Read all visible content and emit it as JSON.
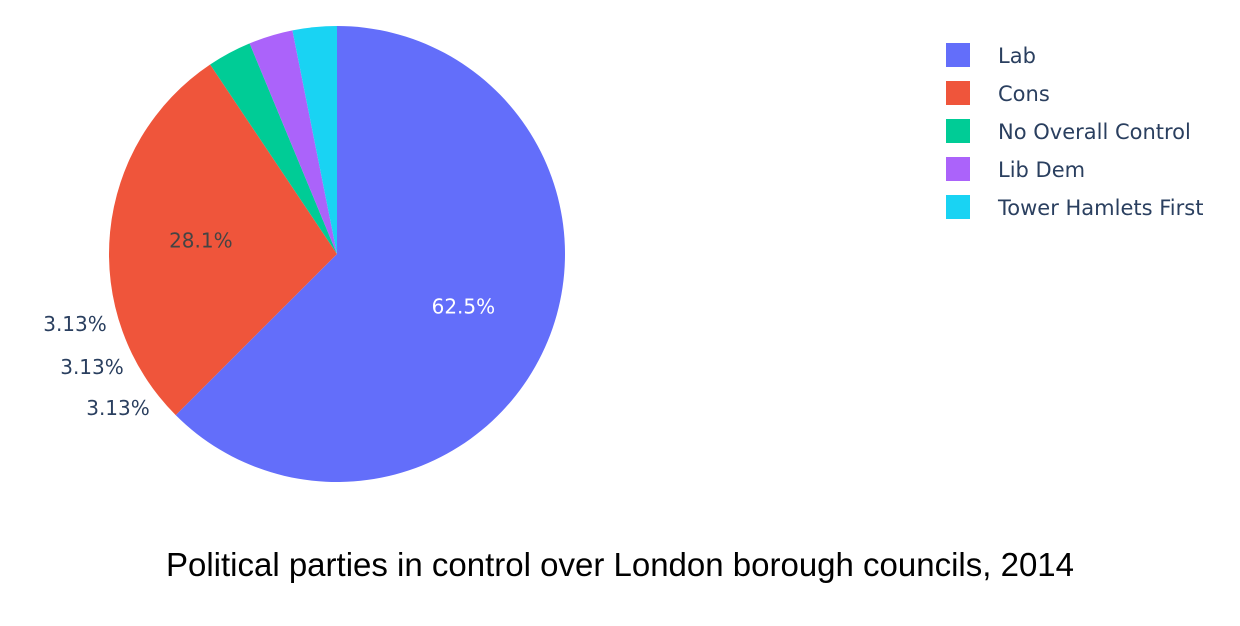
{
  "chart_data": {
    "type": "pie",
    "categories": [
      "Lab",
      "Cons",
      "No Overall Control",
      "Lib Dem",
      "Tower Hamlets First"
    ],
    "values": [
      62.5,
      28.1,
      3.13,
      3.13,
      3.13
    ],
    "labels": [
      "62.5%",
      "28.1%",
      "3.13%",
      "3.13%",
      "3.13%"
    ],
    "colors": [
      "#636efa",
      "#ef553b",
      "#00cc96",
      "#ab63fa",
      "#19d3f3"
    ],
    "title": "Political parties in control over London borough councils, 2014",
    "legend_position": "top-right",
    "direction": "clockwise",
    "start_angle": "top"
  }
}
